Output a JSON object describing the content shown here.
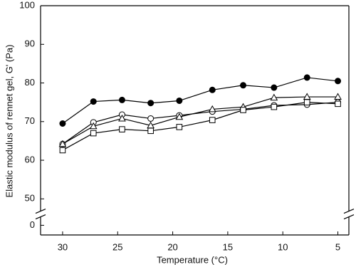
{
  "chart_data": {
    "type": "line",
    "x_label": "Temperature (°C)",
    "y_label": "Elastic modulus of rennet gel, G' (Pa)",
    "xlim": [
      32,
      4
    ],
    "xticks": [
      30,
      25,
      20,
      15,
      10,
      5
    ],
    "ylim": [
      -2.5,
      100
    ],
    "y_break": [
      2,
      47
    ],
    "yticks": [
      0,
      50,
      60,
      70,
      80,
      90,
      100
    ],
    "x": [
      30,
      27.2,
      24.6,
      22,
      19.4,
      16.4,
      13.6,
      10.8,
      7.8,
      5
    ],
    "series": [
      {
        "marker": "filled-circle",
        "color": "#000000",
        "values": [
          69.5,
          75.2,
          75.6,
          74.8,
          75.4,
          78.2,
          79.4,
          78.8,
          81.4,
          80.5
        ]
      },
      {
        "marker": "open-circle",
        "color": "#000000",
        "values": [
          64.2,
          69.8,
          71.8,
          70.8,
          71.6,
          72.6,
          73.2,
          74.2,
          74.4,
          75.0
        ]
      },
      {
        "marker": "open-triangle",
        "color": "#000000",
        "values": [
          64.2,
          68.8,
          70.8,
          69.0,
          71.2,
          73.2,
          73.8,
          76.2,
          76.4,
          76.4
        ]
      },
      {
        "marker": "open-square",
        "color": "#000000",
        "values": [
          62.6,
          67.0,
          68.0,
          67.6,
          68.6,
          70.4,
          73.0,
          73.8,
          75.0,
          74.6
        ]
      }
    ]
  }
}
